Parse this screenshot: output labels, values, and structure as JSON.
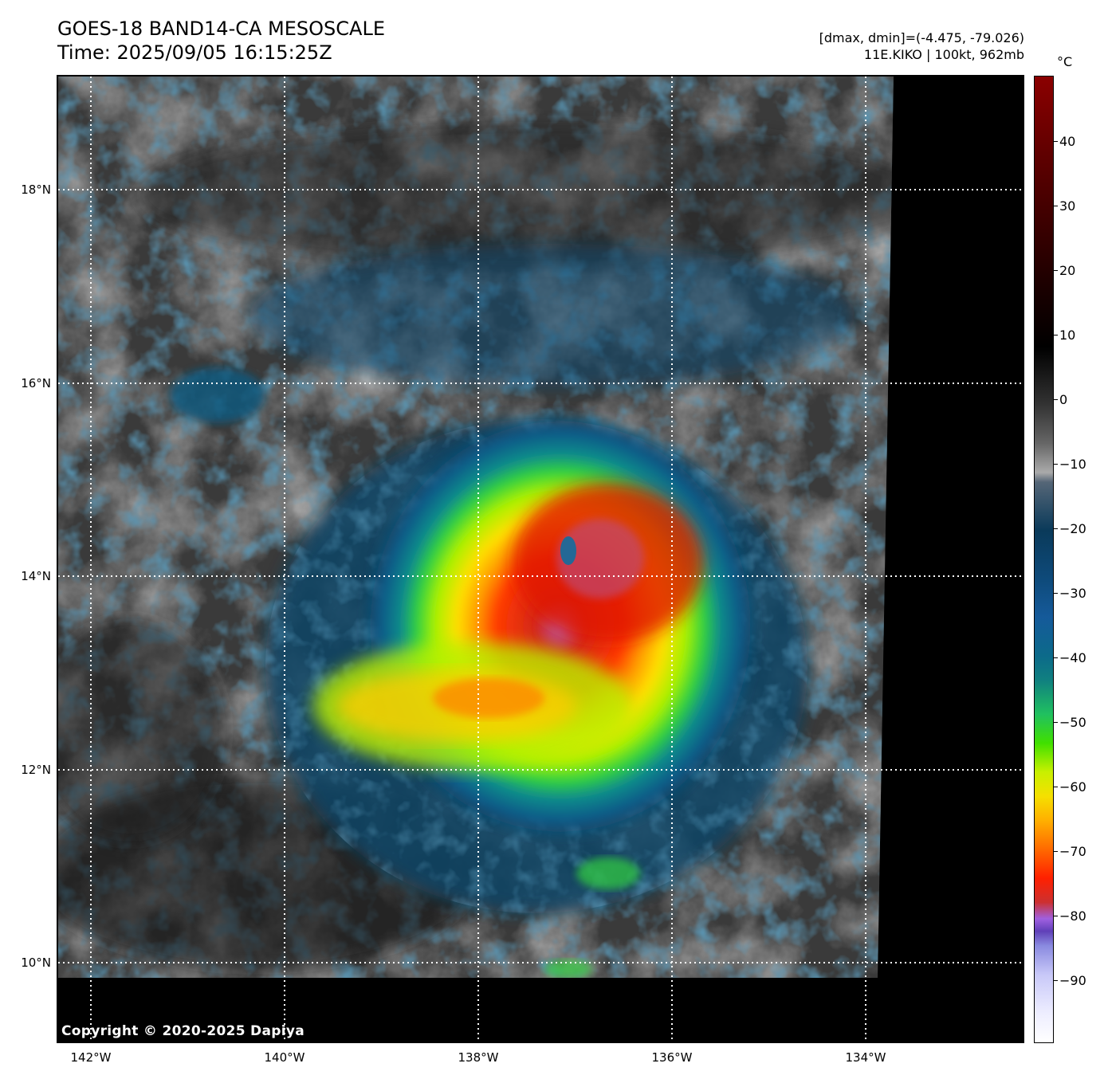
{
  "title": {
    "line1": "GOES-18 BAND14-CA MESOSCALE",
    "line2": "Time: 2025/09/05 16:15:25Z"
  },
  "info": {
    "line1": "[dmax, dmin]=(-4.475, -79.026)",
    "line2": "11E.KIKO | 100kt, 962mb"
  },
  "map": {
    "lat_labels": [
      "18°N",
      "16°N",
      "14°N",
      "12°N",
      "10°N"
    ],
    "lon_labels": [
      "142°W",
      "140°W",
      "138°W",
      "136°W",
      "134°W"
    ],
    "lat_values": [
      18,
      16,
      14,
      12,
      10
    ],
    "lon_values": [
      -142,
      -140,
      -138,
      -136,
      -134
    ],
    "lat_range": [
      9.2,
      19.2
    ],
    "lon_range": [
      -142.35,
      -132.35
    ],
    "gridlines": "dotted white",
    "storm_name": "11E.KIKO",
    "storm_center": {
      "lat": 14.2,
      "lon": -137.0
    }
  },
  "copyright": "Copyright © 2020-2025 Dapiya",
  "colorbar": {
    "unit": "°C",
    "labels": [
      "40",
      "30",
      "20",
      "10",
      "0",
      "−10",
      "−20",
      "−30",
      "−40",
      "−50",
      "−60",
      "−70",
      "−80",
      "−90"
    ],
    "values": [
      40,
      30,
      20,
      10,
      0,
      -10,
      -20,
      -30,
      -40,
      -50,
      -60,
      -70,
      -80,
      -90
    ],
    "range": [
      -100,
      50
    ]
  }
}
